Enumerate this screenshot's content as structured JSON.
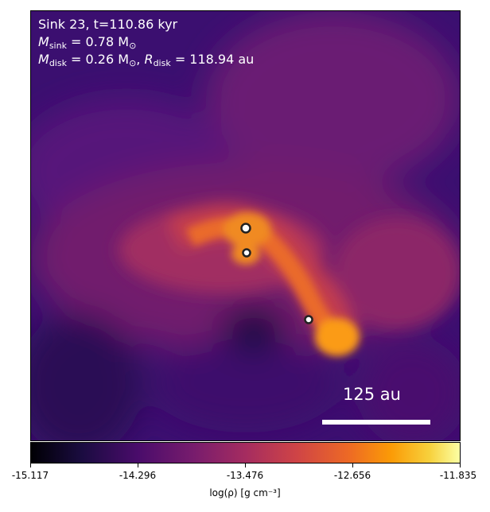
{
  "annotation": {
    "line1": "Sink 23, t=110.86 kyr",
    "msink_symbol": "M",
    "msink_sub": "sink",
    "msink_value": "= 0.78 M",
    "msink_unit_sub": "⊙",
    "mdisk_symbol": "M",
    "mdisk_sub": "disk",
    "mdisk_value": "= 0.26 M",
    "mdisk_unit_sub": "⊙",
    "rdisk_symbol": "R",
    "rdisk_sub": "disk",
    "rdisk_value": "= 118.94 au"
  },
  "scalebar": {
    "label": "125 au"
  },
  "colorbar": {
    "colormap": "inferno",
    "ticks": [
      "-15.117",
      "-14.296",
      "-13.476",
      "-12.656",
      "-11.835"
    ],
    "label": "log(ρ) [g cm⁻³]"
  },
  "sinks": [
    {
      "name": "sink-a"
    },
    {
      "name": "sink-b"
    },
    {
      "name": "sink-c"
    }
  ]
}
